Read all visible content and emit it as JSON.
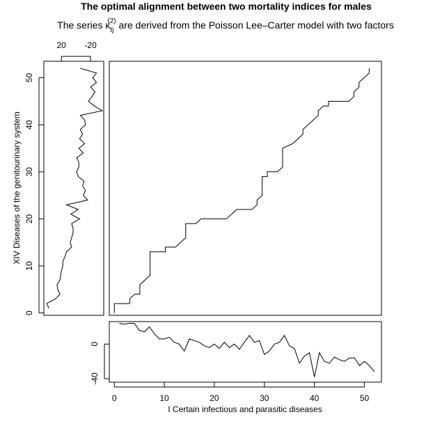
{
  "chart_data": [
    {
      "id": "main",
      "type": "line",
      "title": "The optimal alignment between two mortality indices for males",
      "subtitle_parts": [
        "The series ",
        "κ",
        "tj",
        "(2)",
        " are derived from the Poisson Lee–Carter model with two factors"
      ],
      "xlabel": "I Certain infectious and parasitic diseases",
      "ylabel": "XIV Diseases of the genitourinary system",
      "xlim": [
        0,
        53.4
      ],
      "ylim": [
        -0.5,
        53.5
      ],
      "step_path": [
        [
          1,
          0
        ],
        [
          1,
          2
        ],
        [
          4,
          2
        ],
        [
          4,
          3
        ],
        [
          5,
          4
        ],
        [
          6,
          4
        ],
        [
          6,
          6
        ],
        [
          7,
          7
        ],
        [
          8,
          8
        ],
        [
          8,
          13
        ],
        [
          11,
          13
        ],
        [
          11,
          14
        ],
        [
          13,
          14
        ],
        [
          14,
          15
        ],
        [
          15,
          16
        ],
        [
          15,
          19
        ],
        [
          17,
          19
        ],
        [
          18,
          20
        ],
        [
          23,
          20
        ],
        [
          24,
          21
        ],
        [
          25,
          22
        ],
        [
          28,
          22
        ],
        [
          29,
          23
        ],
        [
          29,
          24
        ],
        [
          30,
          25
        ],
        [
          30,
          29
        ],
        [
          31,
          29
        ],
        [
          31,
          30
        ],
        [
          33,
          30
        ],
        [
          34,
          31
        ],
        [
          34,
          35
        ],
        [
          36,
          36
        ],
        [
          37,
          37
        ],
        [
          38,
          38
        ],
        [
          38,
          39
        ],
        [
          40,
          41
        ],
        [
          41,
          42
        ],
        [
          41,
          43
        ],
        [
          42,
          44
        ],
        [
          43,
          44
        ],
        [
          43,
          45
        ],
        [
          47,
          45
        ],
        [
          48,
          46
        ],
        [
          48,
          47
        ],
        [
          49,
          48
        ],
        [
          49,
          49
        ],
        [
          50,
          50
        ],
        [
          51,
          51
        ],
        [
          51,
          52
        ]
      ]
    },
    {
      "id": "left",
      "type": "line",
      "orientation": "vertical",
      "xticks": [
        20,
        -20
      ],
      "xlim": [
        44,
        -38
      ],
      "ylim": [
        -0.5,
        53.5
      ],
      "yticks": [
        0,
        10,
        20,
        30,
        40,
        50
      ],
      "points": [
        [
          37,
          1
        ],
        [
          40,
          2
        ],
        [
          28,
          3
        ],
        [
          22,
          4
        ],
        [
          25,
          5
        ],
        [
          26,
          6
        ],
        [
          22,
          7
        ],
        [
          21,
          8
        ],
        [
          20,
          9
        ],
        [
          18,
          10
        ],
        [
          18,
          11
        ],
        [
          15,
          12
        ],
        [
          13,
          13
        ],
        [
          6,
          14
        ],
        [
          8,
          15
        ],
        [
          6,
          16
        ],
        [
          4,
          17
        ],
        [
          4,
          18
        ],
        [
          6,
          19
        ],
        [
          -5,
          20
        ],
        [
          7,
          21
        ],
        [
          -3,
          22
        ],
        [
          13,
          23
        ],
        [
          -16,
          24
        ],
        [
          -10,
          25
        ],
        [
          -13,
          26
        ],
        [
          -9,
          27
        ],
        [
          -11,
          28
        ],
        [
          -3,
          29
        ],
        [
          -1,
          30
        ],
        [
          -4,
          31
        ],
        [
          -4,
          32
        ],
        [
          -1,
          33
        ],
        [
          -10,
          34
        ],
        [
          -4,
          35
        ],
        [
          -12,
          36
        ],
        [
          -5,
          37
        ],
        [
          -9,
          38
        ],
        [
          -6,
          39
        ],
        [
          -13,
          40
        ],
        [
          -12,
          41
        ],
        [
          -6,
          42
        ],
        [
          -36,
          43
        ],
        [
          -25,
          44
        ],
        [
          -17,
          45
        ],
        [
          -22,
          46
        ],
        [
          -26,
          47
        ],
        [
          -20,
          48
        ],
        [
          -28,
          49
        ],
        [
          -23,
          50
        ],
        [
          -28,
          51
        ],
        [
          -6,
          52
        ]
      ]
    },
    {
      "id": "bottom",
      "type": "line",
      "xlim": [
        -1,
        53.4
      ],
      "ylim": [
        -44,
        26
      ],
      "xticks": [
        0,
        10,
        20,
        30,
        40,
        50
      ],
      "yticks": [
        0,
        -40
      ],
      "values": [
        [
          1,
          24
        ],
        [
          2,
          23
        ],
        [
          3,
          24
        ],
        [
          4,
          24
        ],
        [
          5,
          16
        ],
        [
          6,
          14
        ],
        [
          7,
          20
        ],
        [
          8,
          12
        ],
        [
          9,
          6
        ],
        [
          10,
          6
        ],
        [
          11,
          8
        ],
        [
          12,
          2
        ],
        [
          13,
          0
        ],
        [
          14,
          -8
        ],
        [
          15,
          6
        ],
        [
          16,
          4
        ],
        [
          17,
          2
        ],
        [
          18,
          -2
        ],
        [
          19,
          -4
        ],
        [
          20,
          0
        ],
        [
          21,
          -5
        ],
        [
          22,
          2
        ],
        [
          23,
          -4
        ],
        [
          24,
          0
        ],
        [
          25,
          -6
        ],
        [
          26,
          2
        ],
        [
          27,
          10
        ],
        [
          28,
          2
        ],
        [
          29,
          4
        ],
        [
          30,
          -12
        ],
        [
          31,
          -8
        ],
        [
          32,
          0
        ],
        [
          33,
          2
        ],
        [
          34,
          10
        ],
        [
          35,
          -2
        ],
        [
          36,
          -5
        ],
        [
          37,
          -22
        ],
        [
          38,
          -14
        ],
        [
          39,
          -10
        ],
        [
          40,
          -38
        ],
        [
          41,
          -10
        ],
        [
          42,
          -20
        ],
        [
          43,
          -22
        ],
        [
          44,
          -15
        ],
        [
          45,
          -18
        ],
        [
          46,
          -20
        ],
        [
          47,
          -16
        ],
        [
          48,
          -16
        ],
        [
          49,
          -25
        ],
        [
          50,
          -20
        ],
        [
          51,
          -25
        ],
        [
          52,
          -32
        ]
      ]
    }
  ]
}
